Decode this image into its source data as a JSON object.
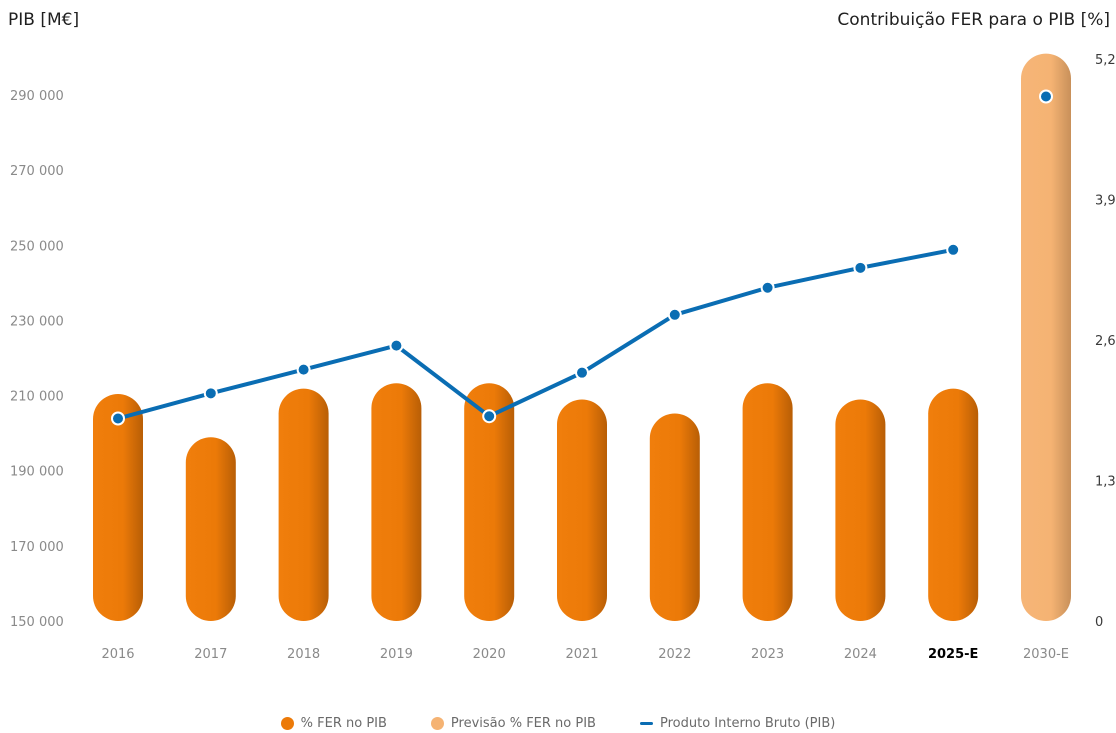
{
  "chart_data": {
    "type": "bar",
    "left_axis_title": "PIB [M€]",
    "right_axis_title": "Contribuição FER para o PIB [%]",
    "categories": [
      "2016",
      "2017",
      "2018",
      "2019",
      "2020",
      "2021",
      "2022",
      "2023",
      "2024",
      "2025-E",
      "2030-E"
    ],
    "bold_category": "2025-E",
    "left_axis": {
      "ticks": [
        "150 000",
        "170 000",
        "190 000",
        "210 000",
        "230 000",
        "250 000",
        "270 000",
        "290 000"
      ],
      "range": [
        150000,
        290000
      ]
    },
    "right_axis": {
      "ticks": [
        "0",
        "1,3",
        "2,6",
        "3,9",
        "5,2"
      ],
      "range": [
        0,
        5.2
      ]
    },
    "series": [
      {
        "name": "% FER no PIB",
        "axis": "right",
        "kind": "bar",
        "color": "#ec7a08",
        "values": [
          2.1,
          1.7,
          2.15,
          2.2,
          2.2,
          2.05,
          1.92,
          2.2,
          2.05,
          2.15,
          null
        ]
      },
      {
        "name": "Previsão % FER no PIB",
        "axis": "right",
        "kind": "bar",
        "color": "#f5b373",
        "values": [
          null,
          null,
          null,
          null,
          null,
          null,
          null,
          null,
          null,
          null,
          5.25
        ]
      },
      {
        "name": "Produto Interno Bruto (PIB)",
        "axis": "left",
        "kind": "line",
        "color": "#0a6db3",
        "values": [
          203900,
          210600,
          216900,
          223300,
          204500,
          216100,
          231500,
          238700,
          244000,
          248800,
          289600
        ]
      }
    ]
  }
}
